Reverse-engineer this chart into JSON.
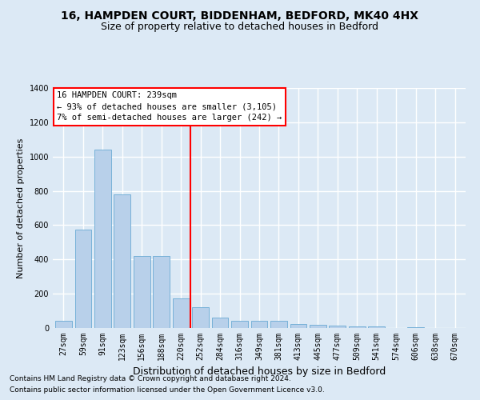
{
  "title1": "16, HAMPDEN COURT, BIDDENHAM, BEDFORD, MK40 4HX",
  "title2": "Size of property relative to detached houses in Bedford",
  "xlabel": "Distribution of detached houses by size in Bedford",
  "ylabel": "Number of detached properties",
  "footnote1": "Contains HM Land Registry data © Crown copyright and database right 2024.",
  "footnote2": "Contains public sector information licensed under the Open Government Licence v3.0.",
  "annotation_line1": "16 HAMPDEN COURT: 239sqm",
  "annotation_line2": "← 93% of detached houses are smaller (3,105)",
  "annotation_line3": "7% of semi-detached houses are larger (242) →",
  "bar_labels": [
    "27sqm",
    "59sqm",
    "91sqm",
    "123sqm",
    "156sqm",
    "188sqm",
    "220sqm",
    "252sqm",
    "284sqm",
    "316sqm",
    "349sqm",
    "381sqm",
    "413sqm",
    "445sqm",
    "477sqm",
    "509sqm",
    "541sqm",
    "574sqm",
    "606sqm",
    "638sqm",
    "670sqm"
  ],
  "bar_values": [
    40,
    575,
    1040,
    780,
    420,
    420,
    175,
    120,
    60,
    40,
    40,
    40,
    25,
    20,
    15,
    8,
    8,
    2,
    5,
    2,
    2
  ],
  "bar_color": "#b8d0ea",
  "bar_edge_color": "#6aaad4",
  "red_line_x": 7,
  "ylim": [
    0,
    1400
  ],
  "yticks": [
    0,
    200,
    400,
    600,
    800,
    1000,
    1200,
    1400
  ],
  "bg_color": "#dce9f5",
  "fig_bg_color": "#dce9f5",
  "grid_color": "#ffffff",
  "title1_fontsize": 10,
  "title2_fontsize": 9,
  "ylabel_fontsize": 8,
  "xlabel_fontsize": 9,
  "tick_fontsize": 7,
  "annotation_fontsize": 7.5,
  "footnote_fontsize": 6.5
}
